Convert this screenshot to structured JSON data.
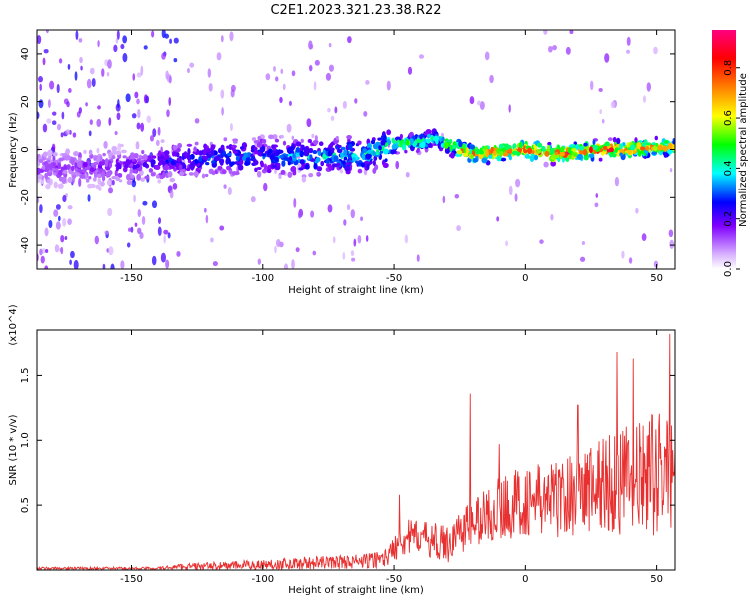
{
  "title": "C2E1.2023.321.23.38.R22",
  "colors": {
    "snr_line": "#e83030",
    "axes": "#000000",
    "colormap": [
      "#ffffff",
      "#8000ff",
      "#0000ff",
      "#00ffff",
      "#00ff00",
      "#ffff00",
      "#ff8000",
      "#ff0000",
      "#ff0080"
    ]
  },
  "chart_data": [
    {
      "type": "heatmap",
      "xlabel": "Height of straight line (km)",
      "ylabel": "Frequency (Hz)",
      "xlim": [
        -186,
        57
      ],
      "ylim": [
        -50,
        50
      ],
      "x_ticks": [
        {
          "value": -150,
          "label": "-150"
        },
        {
          "value": -100,
          "label": "-100"
        },
        {
          "value": -50,
          "label": "-50"
        },
        {
          "value": 0,
          "label": "0"
        },
        {
          "value": 50,
          "label": "50"
        }
      ],
      "y_ticks": [
        {
          "value": 40,
          "label": "40"
        },
        {
          "value": 20,
          "label": "20"
        },
        {
          "value": 0,
          "label": "0"
        },
        {
          "value": -20,
          "label": "-20"
        },
        {
          "value": -40,
          "label": "-40"
        }
      ],
      "colorbar": {
        "label": "Normalized spectral amplitude",
        "range": [
          0,
          0.95
        ],
        "ticks": [
          {
            "value": 0.0,
            "label": "0.0"
          },
          {
            "value": 0.2,
            "label": "0.2"
          },
          {
            "value": 0.4,
            "label": "0.4"
          },
          {
            "value": 0.6,
            "label": "0.6"
          },
          {
            "value": 0.8,
            "label": "0.8"
          }
        ]
      },
      "ridge": {
        "x": [
          -186,
          -150,
          -130,
          -100,
          -75,
          -60,
          -50,
          -40,
          -35,
          -25,
          -20,
          -10,
          0,
          10,
          20,
          30,
          40,
          50,
          57
        ],
        "freq_hz": [
          -8,
          -7,
          -4,
          -3,
          -3,
          -2,
          2,
          3,
          5,
          0,
          -2,
          -1,
          0,
          -2,
          -1,
          0,
          0,
          1,
          1
        ],
        "amplitude": [
          0.15,
          0.2,
          0.3,
          0.35,
          0.4,
          0.45,
          0.5,
          0.55,
          0.45,
          0.7,
          0.8,
          0.85,
          0.9,
          0.85,
          0.9,
          0.85,
          0.8,
          0.75,
          0.7
        ]
      }
    },
    {
      "type": "line",
      "xlabel": "Height of straight line (km)",
      "ylabel": "SNR (10 * v/v)",
      "y_multiplier": "(x10^4)",
      "xlim": [
        -186,
        57
      ],
      "ylim": [
        0,
        1.85
      ],
      "x_ticks": [
        {
          "value": -150,
          "label": "-150"
        },
        {
          "value": -100,
          "label": "-100"
        },
        {
          "value": -50,
          "label": "-50"
        },
        {
          "value": 0,
          "label": "0"
        },
        {
          "value": 50,
          "label": "50"
        }
      ],
      "y_ticks": [
        {
          "value": 0.5,
          "label": "0.5"
        },
        {
          "value": 1.0,
          "label": "1.0"
        },
        {
          "value": 1.5,
          "label": "1.5"
        }
      ],
      "envelope": {
        "x": [
          -186,
          -140,
          -130,
          -120,
          -100,
          -80,
          -60,
          -52,
          -48,
          -40,
          -30,
          -25,
          -20,
          -10,
          0,
          10,
          20,
          30,
          35,
          40,
          50,
          57
        ],
        "baseline": [
          0.01,
          0.01,
          0.02,
          0.02,
          0.03,
          0.04,
          0.05,
          0.08,
          0.2,
          0.22,
          0.15,
          0.25,
          0.3,
          0.4,
          0.45,
          0.45,
          0.5,
          0.55,
          0.55,
          0.55,
          0.6,
          0.65
        ],
        "spread": [
          0.02,
          0.02,
          0.05,
          0.06,
          0.08,
          0.1,
          0.12,
          0.15,
          0.3,
          0.25,
          0.3,
          0.35,
          0.4,
          0.5,
          0.55,
          0.6,
          0.65,
          0.8,
          0.9,
          0.85,
          0.95,
          0.9
        ]
      },
      "peaks": [
        {
          "x": -48,
          "y": 0.58
        },
        {
          "x": -21,
          "y": 1.36
        },
        {
          "x": -10,
          "y": 0.97
        },
        {
          "x": 20,
          "y": 1.27
        },
        {
          "x": 35,
          "y": 1.68
        },
        {
          "x": 41,
          "y": 1.63
        },
        {
          "x": 55,
          "y": 1.82
        }
      ]
    }
  ]
}
